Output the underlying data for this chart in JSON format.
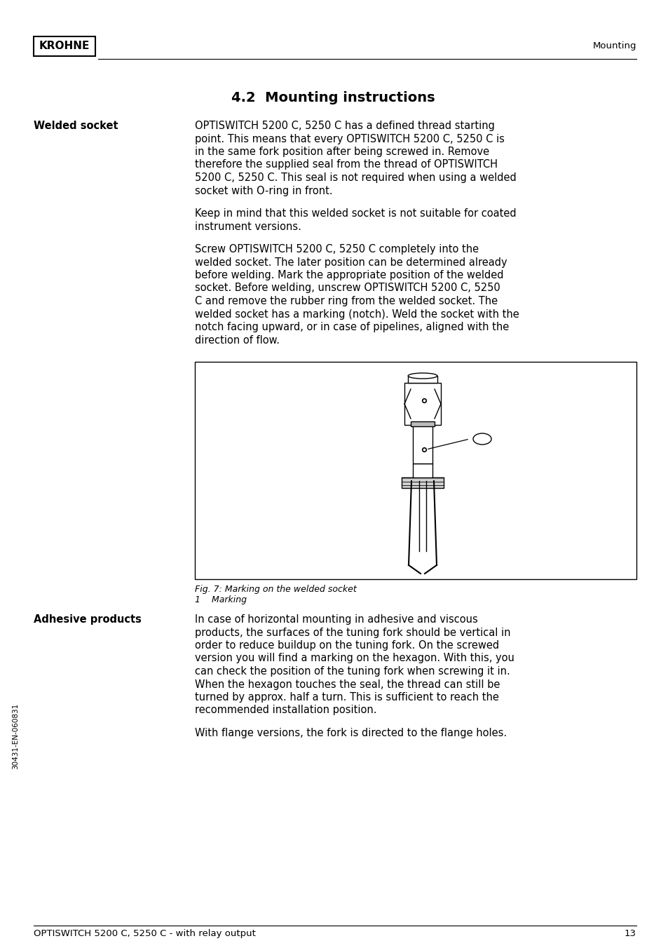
{
  "page_bg": "#ffffff",
  "header_logo_text": "KROHNE",
  "header_right_text": "Mounting",
  "footer_left_text": "OPTISWITCH 5200 C, 5250 C - with relay output",
  "footer_right_text": "13",
  "section_title": "4.2  Mounting instructions",
  "left_label_1": "Welded socket",
  "left_label_2": "Adhesive products",
  "para1": "OPTISWITCH 5200 C, 5250 C has a defined thread starting\npoint. This means that every OPTISWITCH 5200 C, 5250 C is\nin the same fork position after being screwed in. Remove\ntherefore the supplied seal from the thread of OPTISWITCH\n5200 C, 5250 C. This seal is not required when using a welded\nsocket with O-ring in front.",
  "para2": "Keep in mind that this welded socket is not suitable for coated\ninstrument versions.",
  "para3": "Screw OPTISWITCH 5200 C, 5250 C completely into the\nwelded socket. The later position can be determined already\nbefore welding. Mark the appropriate position of the welded\nsocket. Before welding, unscrew OPTISWITCH 5200 C, 5250\nC and remove the rubber ring from the welded socket. The\nwelded socket has a marking (notch). Weld the socket with the\nnotch facing upward, or in case of pipelines, aligned with the\ndirection of flow.",
  "fig_caption_1": "Fig. 7: Marking on the welded socket",
  "fig_caption_2": "1    Marking",
  "para4": "In case of horizontal mounting in adhesive and viscous\nproducts, the surfaces of the tuning fork should be vertical in\norder to reduce buildup on the tuning fork. On the screwed\nversion you will find a marking on the hexagon. With this, you\ncan check the position of the tuning fork when screwing it in.\nWhen the hexagon touches the seal, the thread can still be\nturned by approx. half a turn. This is sufficient to reach the\nrecommended installation position.",
  "para5": "With flange versions, the fork is directed to the flange holes.",
  "side_text": "30431-EN-060831",
  "font_size_body": 10.5,
  "font_size_section": 14,
  "font_size_header": 9.5,
  "font_size_label": 10.5,
  "font_size_caption": 9,
  "font_size_side": 7.5
}
